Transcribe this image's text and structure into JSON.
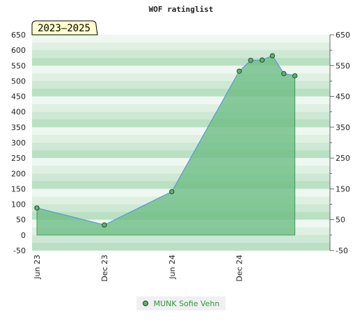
{
  "chart_data": {
    "type": "area",
    "title": "WOF ratinglist",
    "badge": "2023–2025",
    "xlabel": "",
    "ylabel": "",
    "x_ticks": [
      "Jun 23",
      "Dec 23",
      "Jun 24",
      "Dec 24"
    ],
    "y_left_ticks": [
      -50,
      0,
      50,
      100,
      150,
      200,
      250,
      300,
      350,
      400,
      450,
      500,
      550,
      600,
      650
    ],
    "y_right_ticks": [
      -50,
      50,
      150,
      250,
      350,
      450,
      550,
      650
    ],
    "ylim": [
      -50,
      650
    ],
    "xlim": [
      "2023-06-01",
      "2025-07-20"
    ],
    "grid": true,
    "legend_position": "bottom-center",
    "colors": {
      "area": "#6cbd83",
      "line": "#5b9bd5",
      "marker": "#5cb070",
      "band_dark": "#b9e0c2",
      "band_light": "#eef7f0",
      "legend_text": "#2a9a3a",
      "badge_bg": "#ffffcc"
    },
    "series": [
      {
        "name": "MUNK Sofie Vehn",
        "points": [
          {
            "x": "2023-06-01",
            "y": 88
          },
          {
            "x": "2023-12-01",
            "y": 33
          },
          {
            "x": "2024-06-01",
            "y": 141
          },
          {
            "x": "2024-12-01",
            "y": 532
          },
          {
            "x": "2025-01-01",
            "y": 567
          },
          {
            "x": "2025-02-01",
            "y": 568
          },
          {
            "x": "2025-03-01",
            "y": 582
          },
          {
            "x": "2025-04-01",
            "y": 524
          },
          {
            "x": "2025-05-01",
            "y": 517
          }
        ]
      }
    ]
  }
}
